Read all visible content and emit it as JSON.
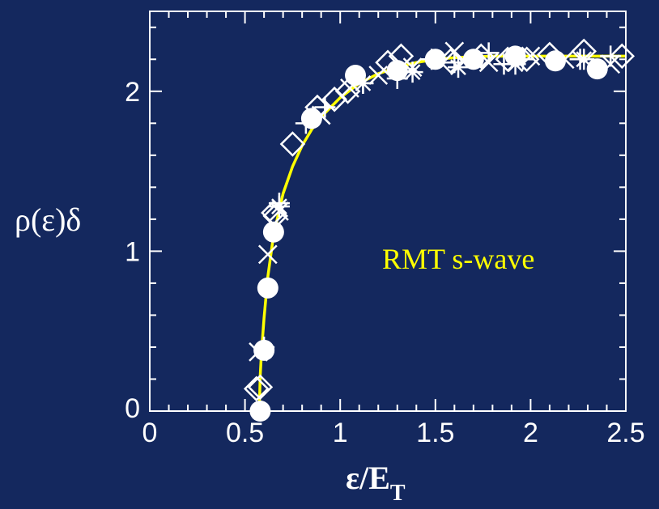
{
  "colors": {
    "background": "#14285e",
    "axis": "#ffffff",
    "markers": "#ffffff",
    "curve": "#ffff00"
  },
  "chart_data": {
    "type": "scatter",
    "xlabel": "ε/E",
    "xlabel_sub": "T",
    "ylabel": "ρ(ε)δ",
    "xlim": [
      0,
      2.5
    ],
    "ylim": [
      0,
      2.5
    ],
    "xticks": [
      0,
      0.5,
      1,
      1.5,
      2,
      2.5
    ],
    "xtick_labels": [
      "0",
      "0.5",
      "1",
      "1.5",
      "2",
      "2.5"
    ],
    "yticks": [
      0,
      1,
      2
    ],
    "ytick_labels": [
      "0",
      "1",
      "2"
    ],
    "grid": false,
    "series": [
      {
        "marker": "circle-filled",
        "x": [
          0.58,
          0.6,
          0.62,
          0.65,
          0.85,
          1.08,
          1.3,
          1.5,
          1.7,
          1.92,
          2.13,
          2.35
        ],
        "y": [
          0.0,
          0.38,
          0.77,
          1.12,
          1.83,
          2.1,
          2.13,
          2.2,
          2.2,
          2.22,
          2.19,
          2.14
        ]
      },
      {
        "marker": "diamond-open",
        "x": [
          0.56,
          0.58,
          0.65,
          0.66,
          0.75,
          0.88,
          0.97,
          1.04,
          1.25,
          1.32,
          1.58,
          1.74,
          1.88,
          1.98,
          2.1,
          2.28,
          2.48
        ],
        "y": [
          0.14,
          0.15,
          1.24,
          1.22,
          1.67,
          1.9,
          1.95,
          2.0,
          2.18,
          2.22,
          2.19,
          2.22,
          2.2,
          2.2,
          2.23,
          2.25,
          2.22
        ]
      },
      {
        "marker": "cross",
        "x": [
          0.57,
          0.62,
          0.68,
          0.9,
          1.05,
          1.2,
          1.38,
          1.6,
          1.78,
          2.0,
          2.18,
          2.42
        ],
        "y": [
          0.37,
          0.98,
          1.25,
          1.85,
          2.02,
          2.1,
          2.15,
          2.25,
          2.18,
          2.22,
          2.2,
          2.17
        ]
      },
      {
        "marker": "plus",
        "x": [
          0.6,
          0.68,
          0.82,
          0.92,
          1.12,
          1.3,
          1.48,
          1.6,
          1.78,
          1.86,
          1.96,
          2.26,
          2.42
        ],
        "y": [
          0.4,
          1.3,
          1.8,
          1.9,
          2.05,
          2.08,
          2.2,
          2.18,
          2.24,
          2.17,
          2.2,
          2.2,
          2.22
        ]
      },
      {
        "marker": "asterisk",
        "x": [
          0.68,
          1.12,
          1.38,
          1.62,
          1.92,
          2.28
        ],
        "y": [
          1.28,
          2.05,
          2.12,
          2.15,
          2.17,
          2.2
        ]
      }
    ],
    "curve": {
      "x": [
        0.575,
        0.58,
        0.585,
        0.59,
        0.6,
        0.62,
        0.65,
        0.7,
        0.75,
        0.8,
        0.85,
        0.9,
        1.0,
        1.1,
        1.2,
        1.3,
        1.4,
        1.5,
        1.6,
        1.8,
        2.0,
        2.2,
        2.5
      ],
      "y": [
        0.0,
        0.22,
        0.33,
        0.42,
        0.58,
        0.84,
        1.1,
        1.36,
        1.53,
        1.66,
        1.76,
        1.84,
        1.96,
        2.05,
        2.11,
        2.15,
        2.18,
        2.2,
        2.21,
        2.22,
        2.22,
        2.22,
        2.22
      ]
    },
    "annotation": "RMT s-wave"
  }
}
